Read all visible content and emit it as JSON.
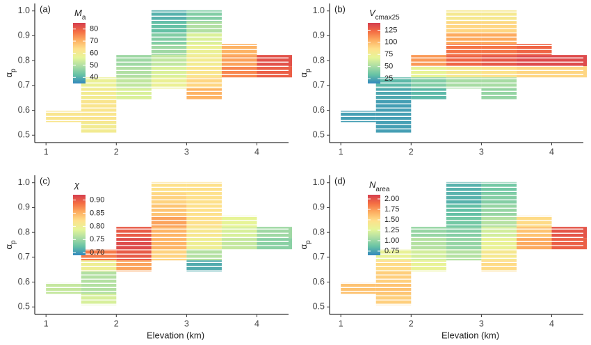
{
  "chart_data": [
    {
      "type": "heatmap",
      "panel_label": "(a)",
      "colorbar_title": {
        "main": "M",
        "sub": "a"
      },
      "y_label": {
        "main": "α",
        "sub": "p"
      },
      "x": [
        1.25,
        1.75,
        2.25,
        2.75,
        3.25,
        3.75,
        4.25
      ],
      "y": [
        0.98,
        0.935,
        0.89,
        0.845,
        0.8,
        0.755,
        0.71,
        0.665,
        0.62,
        0.575,
        0.53
      ],
      "values": [
        [
          null,
          null,
          null,
          40,
          45,
          null,
          null
        ],
        [
          null,
          null,
          null,
          42,
          50,
          null,
          null
        ],
        [
          null,
          null,
          null,
          45,
          55,
          null,
          null
        ],
        [
          null,
          null,
          null,
          48,
          58,
          70,
          null
        ],
        [
          null,
          null,
          48,
          52,
          60,
          72,
          82
        ],
        [
          null,
          null,
          50,
          55,
          62,
          75,
          80
        ],
        [
          null,
          58,
          52,
          58,
          65,
          null,
          null
        ],
        [
          null,
          60,
          55,
          null,
          70,
          null,
          null
        ],
        [
          null,
          62,
          null,
          null,
          null,
          null,
          null
        ],
        [
          62,
          62,
          null,
          null,
          null,
          null,
          null
        ],
        [
          null,
          60,
          null,
          null,
          null,
          null,
          null
        ]
      ],
      "xlim": [
        0.84,
        4.45
      ],
      "xticks": [
        1,
        2,
        3,
        4
      ],
      "ylim": [
        0.47,
        1.03
      ],
      "yticks": [
        0.5,
        0.6,
        0.7,
        0.8,
        0.9,
        {
          "value": 1.0,
          "label": "1.0"
        }
      ],
      "clim": [
        35,
        85
      ],
      "cticks": [
        40,
        50,
        60,
        70,
        80
      ],
      "colors": [
        "#3288bd",
        "#66c2a5",
        "#abdda4",
        "#e6f598",
        "#fee08b",
        "#fdae61",
        "#f46d43",
        "#d53e4f"
      ]
    },
    {
      "type": "heatmap",
      "panel_label": "(b)",
      "colorbar_title": {
        "main": "V",
        "sub": "cmax25"
      },
      "y_label": {
        "main": "α",
        "sub": "p"
      },
      "x": [
        1.25,
        1.75,
        2.25,
        2.75,
        3.25,
        3.75,
        4.25
      ],
      "y": [
        0.98,
        0.935,
        0.89,
        0.845,
        0.8,
        0.755,
        0.71,
        0.665,
        0.62,
        0.575,
        0.53
      ],
      "values": [
        [
          null,
          null,
          null,
          80,
          80,
          null,
          null
        ],
        [
          null,
          null,
          null,
          90,
          90,
          null,
          null
        ],
        [
          null,
          null,
          null,
          105,
          105,
          null,
          null
        ],
        [
          null,
          null,
          null,
          120,
          120,
          125,
          null
        ],
        [
          null,
          null,
          110,
          125,
          130,
          135,
          135
        ],
        [
          null,
          null,
          70,
          80,
          85,
          90,
          90
        ],
        [
          null,
          30,
          40,
          50,
          50,
          null,
          null
        ],
        [
          null,
          25,
          30,
          null,
          45,
          null,
          null
        ],
        [
          null,
          22,
          null,
          null,
          null,
          null,
          null
        ],
        [
          22,
          22,
          null,
          null,
          null,
          null,
          null
        ],
        [
          null,
          22,
          null,
          null,
          null,
          null,
          null
        ]
      ],
      "xlim": [
        0.84,
        4.45
      ],
      "xticks": [
        1,
        2,
        3,
        4
      ],
      "ylim": [
        0.47,
        1.03
      ],
      "yticks": [
        0.5,
        0.6,
        0.7,
        0.8,
        0.9,
        {
          "value": 1.0,
          "label": "1.0"
        }
      ],
      "clim": [
        15,
        140
      ],
      "cticks": [
        25,
        50,
        75,
        100,
        125
      ],
      "colors": [
        "#3288bd",
        "#66c2a5",
        "#abdda4",
        "#e6f598",
        "#fee08b",
        "#fdae61",
        "#f46d43",
        "#d53e4f"
      ]
    },
    {
      "type": "heatmap",
      "panel_label": "(c)",
      "colorbar_title": {
        "main": "χ"
      },
      "y_label": {
        "main": "α",
        "sub": "p"
      },
      "x_label": "Elevation (km)",
      "x": [
        1.25,
        1.75,
        2.25,
        2.75,
        3.25,
        3.75,
        4.25
      ],
      "y": [
        0.98,
        0.935,
        0.89,
        0.845,
        0.8,
        0.755,
        0.71,
        0.665,
        0.62,
        0.575,
        0.53
      ],
      "values": [
        [
          null,
          null,
          null,
          0.82,
          0.82,
          null,
          null
        ],
        [
          null,
          null,
          null,
          0.83,
          0.82,
          null,
          null
        ],
        [
          null,
          null,
          null,
          0.84,
          0.82,
          null,
          null
        ],
        [
          null,
          null,
          null,
          0.86,
          0.82,
          0.79,
          null
        ],
        [
          null,
          null,
          0.9,
          0.85,
          0.81,
          0.78,
          0.75
        ],
        [
          null,
          null,
          0.91,
          0.85,
          0.8,
          0.77,
          0.74
        ],
        [
          null,
          0.88,
          0.9,
          0.83,
          0.76,
          null,
          null
        ],
        [
          null,
          0.8,
          0.86,
          null,
          0.71,
          null,
          null
        ],
        [
          null,
          0.76,
          null,
          null,
          null,
          null,
          null
        ],
        [
          0.77,
          0.76,
          null,
          null,
          null,
          null,
          null
        ],
        [
          null,
          0.78,
          null,
          null,
          null,
          null,
          null
        ]
      ],
      "xlim": [
        0.84,
        4.45
      ],
      "xticks": [
        1,
        2,
        3,
        4
      ],
      "ylim": [
        0.47,
        1.03
      ],
      "yticks": [
        0.5,
        0.6,
        0.7,
        0.8,
        0.9,
        {
          "value": 1.0,
          "label": "1.0"
        }
      ],
      "clim": [
        0.69,
        0.92
      ],
      "cticks": [
        {
          "value": 0.7,
          "label": "0.70"
        },
        0.75,
        {
          "value": 0.8,
          "label": "0.80"
        },
        0.85,
        {
          "value": 0.9,
          "label": "0.90"
        }
      ],
      "colors": [
        "#3288bd",
        "#66c2a5",
        "#abdda4",
        "#e6f598",
        "#fee08b",
        "#fdae61",
        "#f46d43",
        "#d53e4f"
      ]
    },
    {
      "type": "heatmap",
      "panel_label": "(d)",
      "colorbar_title": {
        "main": "N",
        "sub": "area"
      },
      "y_label": {
        "main": "α",
        "sub": "p"
      },
      "x_label": "Elevation (km)",
      "x": [
        1.25,
        1.75,
        2.25,
        2.75,
        3.25,
        3.75,
        4.25
      ],
      "y": [
        0.98,
        0.935,
        0.89,
        0.845,
        0.8,
        0.755,
        0.71,
        0.665,
        0.62,
        0.575,
        0.53
      ],
      "values": [
        [
          null,
          null,
          null,
          0.8,
          0.9,
          null,
          null
        ],
        [
          null,
          null,
          null,
          0.8,
          0.95,
          null,
          null
        ],
        [
          null,
          null,
          null,
          0.85,
          1.0,
          null,
          null
        ],
        [
          null,
          null,
          null,
          0.9,
          1.1,
          1.5,
          null
        ],
        [
          null,
          null,
          1.0,
          0.95,
          1.2,
          1.6,
          2.0
        ],
        [
          null,
          null,
          1.1,
          1.0,
          1.3,
          1.7,
          1.95
        ],
        [
          null,
          1.3,
          1.2,
          1.1,
          1.4,
          null,
          null
        ],
        [
          null,
          1.5,
          1.3,
          null,
          1.5,
          null,
          null
        ],
        [
          null,
          1.55,
          null,
          null,
          null,
          null,
          null
        ],
        [
          1.6,
          1.6,
          null,
          null,
          null,
          null,
          null
        ],
        [
          null,
          1.55,
          null,
          null,
          null,
          null,
          null
        ]
      ],
      "xlim": [
        0.84,
        4.45
      ],
      "xticks": [
        1,
        2,
        3,
        4
      ],
      "ylim": [
        0.47,
        1.03
      ],
      "yticks": [
        0.5,
        0.6,
        0.7,
        0.8,
        0.9,
        {
          "value": 1.0,
          "label": "1.0"
        }
      ],
      "clim": [
        0.65,
        2.1
      ],
      "cticks": [
        0.75,
        {
          "value": 1.0,
          "label": "1.00"
        },
        1.25,
        {
          "value": 1.5,
          "label": "1.50"
        },
        1.75,
        {
          "value": 2.0,
          "label": "2.00"
        }
      ],
      "colors": [
        "#3288bd",
        "#66c2a5",
        "#abdda4",
        "#e6f598",
        "#fee08b",
        "#fdae61",
        "#f46d43",
        "#d53e4f"
      ]
    }
  ]
}
